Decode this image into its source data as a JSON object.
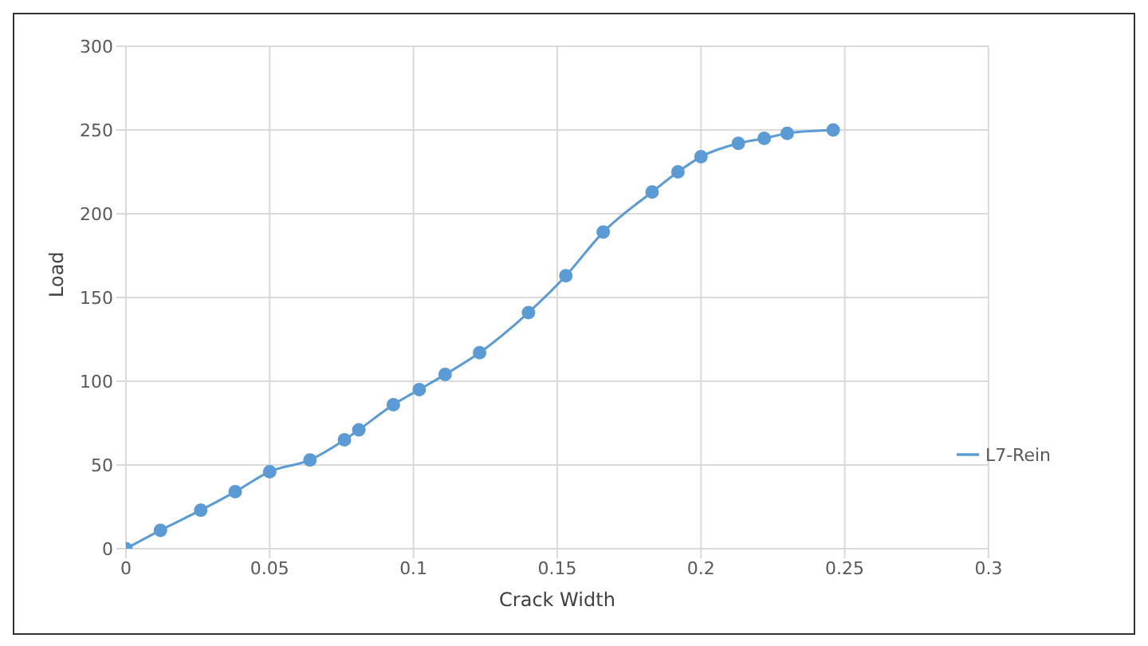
{
  "chart_data": {
    "type": "line",
    "xlabel": "Crack Width",
    "ylabel": "Load",
    "x": [
      0,
      0.012,
      0.026,
      0.038,
      0.05,
      0.064,
      0.076,
      0.081,
      0.093,
      0.102,
      0.111,
      0.123,
      0.14,
      0.153,
      0.166,
      0.183,
      0.192,
      0.2,
      0.213,
      0.222,
      0.23,
      0.246
    ],
    "series": [
      {
        "name": "L7-Rein",
        "color": "#5b9bd5",
        "values": [
          0,
          11,
          23,
          34,
          46,
          53,
          65,
          71,
          86,
          95,
          104,
          117,
          141,
          163,
          189,
          213,
          225,
          234,
          242,
          245,
          248,
          250
        ]
      }
    ],
    "xlim": [
      0,
      0.3
    ],
    "xticks": [
      0,
      0.05,
      0.1,
      0.15,
      0.2,
      0.25,
      0.3
    ],
    "ylim": [
      0,
      300
    ],
    "yticks": [
      0,
      50,
      100,
      150,
      200,
      250,
      300
    ],
    "grid": true,
    "legend": "right",
    "marker": "circle",
    "line_style": "solid"
  }
}
